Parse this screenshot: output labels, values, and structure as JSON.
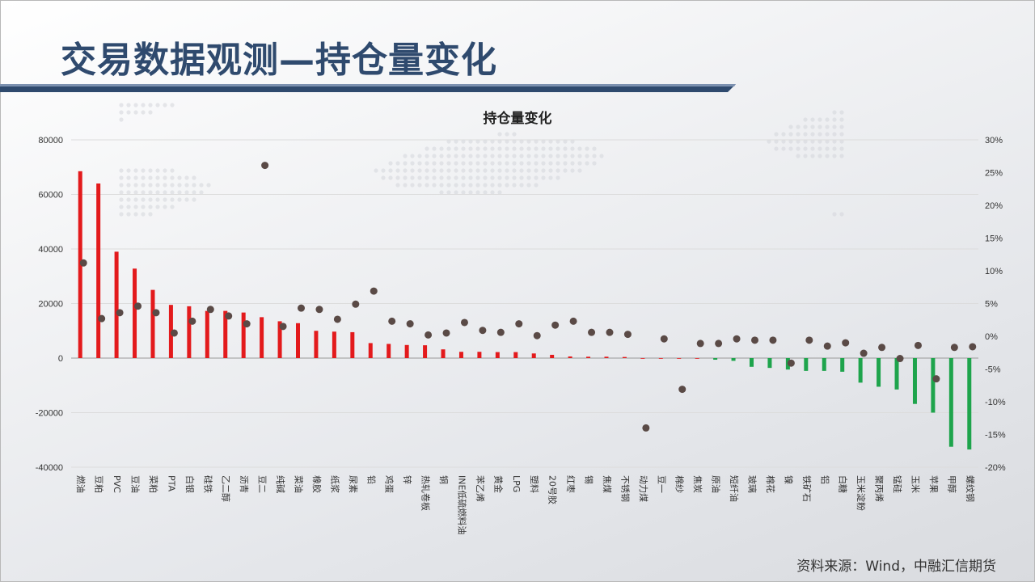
{
  "page": {
    "title": "交易数据观测—持仓量变化",
    "source": "资料来源：Wind，中融汇信期货"
  },
  "colors": {
    "positive": "#e31a1c",
    "negative": "#1ea44c",
    "marker": "#5a4a46",
    "title": "#2f4a6e"
  },
  "chart_data": {
    "type": "bar",
    "title": "持仓量变化",
    "y_left": {
      "min": -40000,
      "max": 80000,
      "ticks": [
        -40000,
        -20000,
        0,
        20000,
        40000,
        60000,
        80000
      ]
    },
    "y_right": {
      "min": -20,
      "max": 30,
      "ticks": [
        -20,
        -15,
        -10,
        -5,
        0,
        5,
        10,
        15,
        20,
        25,
        30
      ],
      "tick_labels": [
        "-20%",
        "-15%",
        "-10%",
        "-5%",
        "0%",
        "5%",
        "10%",
        "15%",
        "20%",
        "25%",
        "30%"
      ]
    },
    "grid": true,
    "categories": [
      "燃油",
      "豆粕",
      "PVC",
      "豆油",
      "菜粕",
      "PTA",
      "白银",
      "硅铁",
      "乙二醇",
      "沥青",
      "豆二",
      "纯碱",
      "菜油",
      "橡胶",
      "纸浆",
      "尿素",
      "铅",
      "鸡蛋",
      "锌",
      "热轧卷板",
      "铜",
      "INE低硫燃料油",
      "苯乙烯",
      "黄金",
      "LPG",
      "塑料",
      "20号胶",
      "红枣",
      "锡",
      "焦煤",
      "不锈钢",
      "动力煤",
      "豆一",
      "棉纱",
      "焦炭",
      "原油",
      "短纤油",
      "玻璃",
      "棉花",
      "镍",
      "铁矿石",
      "铝",
      "白糖",
      "玉米淀粉",
      "聚丙烯",
      "锰硅",
      "玉米",
      "苹果",
      "甲醇",
      "螺纹钢"
    ],
    "series": [
      {
        "type": "bar",
        "axis": "left",
        "values": [
          68500,
          64000,
          39000,
          32800,
          25000,
          19500,
          19000,
          17300,
          17300,
          16700,
          15000,
          13500,
          12800,
          10000,
          9700,
          9500,
          5500,
          5200,
          4800,
          4700,
          3200,
          2300,
          2300,
          2200,
          2200,
          1700,
          1200,
          600,
          500,
          500,
          400,
          0,
          0,
          0,
          0,
          -600,
          -1000,
          -3200,
          -3600,
          -4200,
          -4700,
          -4700,
          -5000,
          -9000,
          -10500,
          -11500,
          -16800,
          -20000,
          -32500,
          -33500
        ]
      },
      {
        "type": "scatter",
        "axis": "right",
        "values": [
          11.2,
          2.7,
          3.6,
          4.6,
          3.6,
          0.5,
          2.3,
          4.1,
          3.1,
          1.9,
          26.1,
          1.5,
          4.3,
          4.1,
          2.6,
          4.9,
          6.9,
          2.3,
          1.9,
          0.2,
          0.5,
          2.1,
          0.9,
          0.6,
          1.9,
          0.1,
          1.7,
          2.3,
          0.6,
          0.6,
          0.3,
          -14.0,
          -0.4,
          -8.1,
          -1.1,
          -1.1,
          -0.4,
          -0.6,
          -0.6,
          -4.1,
          -0.6,
          -1.5,
          -1.0,
          -2.6,
          -1.7,
          -3.4,
          -1.4,
          -6.5,
          -1.7,
          -1.6
        ]
      }
    ]
  }
}
